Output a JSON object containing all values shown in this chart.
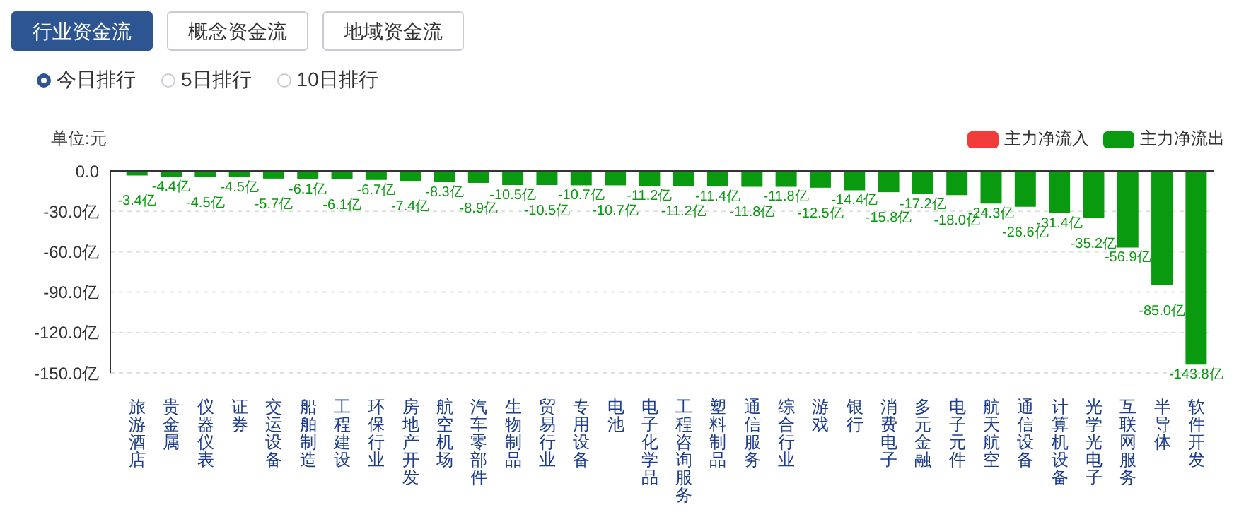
{
  "chart_data": {
    "type": "bar",
    "ylabel": "单位:元",
    "annotations": [
      "行业资金流",
      "概念资金流",
      "地域资金流",
      "今日排行",
      "5日排行",
      "10日排行"
    ],
    "categories": [
      "旅游酒店",
      "贵金属",
      "仪器仪表",
      "证券",
      "交运设备",
      "船舶制造",
      "工程建设",
      "环保行业",
      "房地产开发",
      "航空机场",
      "汽车零部件",
      "生物制品",
      "贸易行业",
      "专用设备",
      "电池",
      "电子化学品",
      "工程咨询服务",
      "塑料制品",
      "通信服务",
      "综合行业",
      "游戏",
      "银行",
      "消费电子",
      "多元金融",
      "电子元件",
      "航天航空",
      "通信设备",
      "计算机设备",
      "光学光电子",
      "互联网服务",
      "半导体",
      "软件开发"
    ],
    "series": [
      {
        "name": "主力净流入",
        "color": "#f23c3c",
        "values": [
          null,
          null,
          null,
          null,
          null,
          null,
          null,
          null,
          null,
          null,
          null,
          null,
          null,
          null,
          null,
          null,
          null,
          null,
          null,
          null,
          null,
          null,
          null,
          null,
          null,
          null,
          null,
          null,
          null,
          null,
          null,
          null
        ]
      },
      {
        "name": "主力净流出",
        "color": "#0a9a10",
        "values": [
          -3.4,
          -4.4,
          -4.5,
          -4.5,
          -5.7,
          -6.1,
          -6.1,
          -6.7,
          -7.4,
          -8.3,
          -8.9,
          -10.5,
          -10.5,
          -10.7,
          -10.7,
          -11.2,
          -11.2,
          -11.4,
          -11.8,
          -11.8,
          -12.5,
          -14.4,
          -15.8,
          -17.2,
          -18.0,
          -24.3,
          -26.6,
          -31.4,
          -35.2,
          -56.9,
          -85.0,
          -143.8
        ],
        "value_labels": [
          "-3.4亿",
          "-4.4亿",
          "-4.5亿",
          "-4.5亿",
          "-5.7亿",
          "-6.1亿",
          "-6.1亿",
          "-6.7亿",
          "-7.4亿",
          "-8.3亿",
          "-8.9亿",
          "-10.5亿",
          "-10.5亿",
          "-10.7亿",
          "-10.7亿",
          "-11.2亿",
          "-11.2亿",
          "-11.4亿",
          "-11.8亿",
          "-11.8亿",
          "-12.5亿",
          "-14.4亿",
          "-15.8亿",
          "-17.2亿",
          "-18.0亿",
          "-24.3亿",
          "-26.6亿",
          "-31.4亿",
          "-35.2亿",
          "-56.9亿",
          "-85.0亿",
          "-143.8亿"
        ]
      }
    ],
    "stacked": true,
    "ylim": [
      -150,
      0
    ],
    "yticks": [
      {
        "value": 0,
        "label": "0.0"
      },
      {
        "value": -30,
        "label": "-30.0亿"
      },
      {
        "value": -60,
        "label": "-60.0亿"
      },
      {
        "value": -90,
        "label": "-90.0亿"
      },
      {
        "value": -120,
        "label": "-120.0亿"
      },
      {
        "value": -150,
        "label": "-150.0亿"
      }
    ],
    "grid": "y",
    "legend": "top right"
  }
}
